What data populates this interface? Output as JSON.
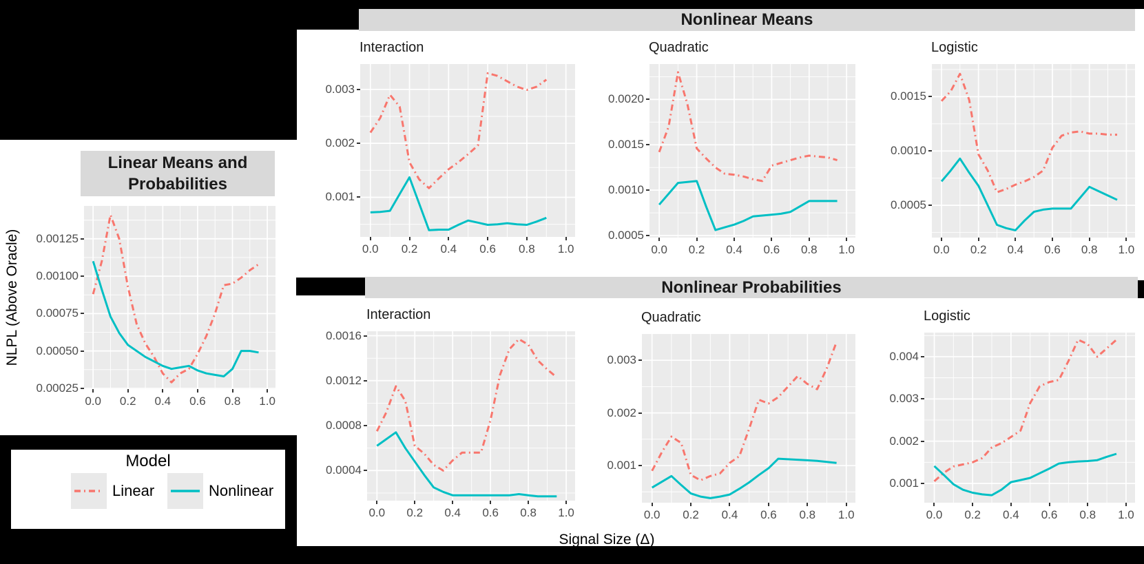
{
  "figure": {
    "strips": {
      "top": "Nonlinear Means",
      "bottom": "Nonlinear Probabilities",
      "left": "Linear Means and Probabilities"
    },
    "y_axis_title": "NLPL (Above Oracle)",
    "x_axis_title": "Signal Size (Δ)",
    "legend": {
      "title": "Model",
      "items": [
        {
          "label": "Linear",
          "color": "#F8766D",
          "dashed": true
        },
        {
          "label": "Nonlinear",
          "color": "#00BFC4",
          "dashed": false
        }
      ]
    },
    "colors": {
      "linear": "#F8766D",
      "nonlinear": "#00BFC4",
      "panel_bg": "#EBEBEB",
      "strip_bg": "#D9D9D9",
      "grid": "#FFFFFF",
      "tick_label": "#4D4D4D"
    }
  },
  "chart_data": [
    {
      "id": "linear-means-probabilities",
      "type": "line",
      "title": "",
      "facet": "Linear Means and Probabilities",
      "xlabel": "Signal Size (Δ)",
      "ylabel": "NLPL (Above Oracle)",
      "x": [
        0,
        0.05,
        0.1,
        0.15,
        0.2,
        0.25,
        0.3,
        0.35,
        0.4,
        0.45,
        0.5,
        0.55,
        0.6,
        0.65,
        0.7,
        0.75,
        0.8,
        0.85,
        0.9,
        0.95
      ],
      "series": [
        {
          "name": "Linear",
          "values": [
            0.00088,
            0.0011,
            0.00141,
            0.00125,
            0.00093,
            0.00068,
            0.00055,
            0.00046,
            0.00035,
            0.00029,
            0.00035,
            0.00038,
            0.00048,
            0.0006,
            0.00075,
            0.00094,
            0.00095,
            0.00099,
            0.00104,
            0.00108
          ]
        },
        {
          "name": "Nonlinear",
          "values": [
            0.0011,
            0.00091,
            0.00073,
            0.00062,
            0.00054,
            0.0005,
            0.00046,
            0.00043,
            0.0004,
            0.00038,
            0.00039,
            0.0004,
            0.00037,
            0.00035,
            0.00034,
            0.00033,
            0.00038,
            0.0005,
            0.0005,
            0.00049
          ]
        }
      ],
      "x_tick_values": [
        0,
        0.2,
        0.4,
        0.6,
        0.8,
        1.0
      ],
      "x_tick_labels": [
        "0.0",
        "0.2",
        "0.4",
        "0.6",
        "0.8",
        "1.0"
      ],
      "y_tick_values": [
        0.00025,
        0.0005,
        0.00075,
        0.001,
        0.00125
      ],
      "y_tick_labels": [
        "0.00025",
        "0.00050",
        "0.00075",
        "0.00100",
        "0.00125"
      ],
      "ylim": [
        0.000245,
        0.00147
      ],
      "xlim": [
        -0.052,
        1.047
      ]
    },
    {
      "id": "interaction-means",
      "type": "line",
      "title": "Interaction",
      "facet": "Nonlinear Means",
      "x": [
        0,
        0.05,
        0.1,
        0.15,
        0.2,
        0.25,
        0.3,
        0.35,
        0.4,
        0.45,
        0.5,
        0.55,
        0.6,
        0.65,
        0.7,
        0.75,
        0.8,
        0.85,
        0.9
      ],
      "series": [
        {
          "name": "Linear",
          "values": [
            0.0022,
            0.00247,
            0.0029,
            0.00268,
            0.00165,
            0.00133,
            0.00117,
            0.00135,
            0.00152,
            0.00165,
            0.0018,
            0.00196,
            0.0033,
            0.00325,
            0.00315,
            0.00305,
            0.00299,
            0.00305,
            0.00318
          ]
        },
        {
          "name": "Nonlinear",
          "values": [
            0.00072,
            0.00073,
            0.00075,
            0.00106,
            0.00137,
            0.00088,
            0.00039,
            0.0004,
            0.0004,
            0.00049,
            0.00057,
            0.00053,
            0.00049,
            0.0005,
            0.00052,
            0.0005,
            0.00049,
            0.00055,
            0.00062
          ]
        }
      ],
      "x_tick_values": [
        0,
        0.2,
        0.4,
        0.6,
        0.8,
        1.0
      ],
      "x_tick_labels": [
        "0.0",
        "0.2",
        "0.4",
        "0.6",
        "0.8",
        "1.0"
      ],
      "y_tick_values": [
        0.001,
        0.002,
        0.003
      ],
      "y_tick_labels": [
        "0.001",
        "0.002",
        "0.003"
      ],
      "ylim": [
        0.000266,
        0.00347
      ],
      "xlim": [
        -0.052,
        1.047
      ]
    },
    {
      "id": "quadratic-means",
      "type": "line",
      "title": "Quadratic",
      "facet": "Nonlinear Means",
      "x": [
        0,
        0.05,
        0.1,
        0.15,
        0.2,
        0.25,
        0.3,
        0.35,
        0.4,
        0.45,
        0.5,
        0.55,
        0.6,
        0.65,
        0.7,
        0.75,
        0.8,
        0.85,
        0.9,
        0.95
      ],
      "series": [
        {
          "name": "Linear",
          "values": [
            0.00142,
            0.0017,
            0.0023,
            0.00195,
            0.00146,
            0.00135,
            0.00125,
            0.00118,
            0.00117,
            0.00115,
            0.00112,
            0.0011,
            0.00127,
            0.0013,
            0.00133,
            0.00136,
            0.00138,
            0.00137,
            0.00136,
            0.00133
          ]
        },
        {
          "name": "Nonlinear",
          "values": [
            0.00084,
            0.00096,
            0.00108,
            0.00109,
            0.0011,
            0.00082,
            0.00056,
            0.00059,
            0.00062,
            0.00066,
            0.00071,
            0.00072,
            0.00073,
            0.00074,
            0.00076,
            0.00082,
            0.00088,
            0.00088,
            0.00088,
            0.00088
          ]
        }
      ],
      "x_tick_values": [
        0,
        0.2,
        0.4,
        0.6,
        0.8,
        1.0
      ],
      "x_tick_labels": [
        "0.0",
        "0.2",
        "0.4",
        "0.6",
        "0.8",
        "1.0"
      ],
      "y_tick_values": [
        0.0005,
        0.001,
        0.0015,
        0.002
      ],
      "y_tick_labels": [
        "0.0005",
        "0.0010",
        "0.0015",
        "0.0020"
      ],
      "ylim": [
        0.000477,
        0.00239
      ],
      "xlim": [
        -0.052,
        1.047
      ]
    },
    {
      "id": "logistic-means",
      "type": "line",
      "title": "Logistic",
      "facet": "Nonlinear Means",
      "x": [
        0,
        0.05,
        0.1,
        0.15,
        0.2,
        0.25,
        0.3,
        0.35,
        0.4,
        0.45,
        0.5,
        0.55,
        0.6,
        0.65,
        0.7,
        0.75,
        0.8,
        0.85,
        0.9,
        0.95
      ],
      "series": [
        {
          "name": "Linear",
          "values": [
            0.00146,
            0.00155,
            0.00171,
            0.00147,
            0.00097,
            0.00082,
            0.00062,
            0.00065,
            0.00069,
            0.00072,
            0.00076,
            0.00082,
            0.00103,
            0.00114,
            0.00117,
            0.00118,
            0.00116,
            0.00116,
            0.00115,
            0.00115
          ]
        },
        {
          "name": "Nonlinear",
          "values": [
            0.00072,
            0.00082,
            0.00093,
            0.0008,
            0.00068,
            0.0005,
            0.00032,
            0.00029,
            0.00027,
            0.00036,
            0.00044,
            0.00046,
            0.00047,
            0.00047,
            0.00047,
            0.00057,
            0.00067,
            0.00063,
            0.00059,
            0.00055
          ]
        }
      ],
      "x_tick_values": [
        0,
        0.2,
        0.4,
        0.6,
        0.8,
        1.0
      ],
      "x_tick_labels": [
        "0.0",
        "0.2",
        "0.4",
        "0.6",
        "0.8",
        "1.0"
      ],
      "y_tick_values": [
        0.0005,
        0.001,
        0.0015
      ],
      "y_tick_labels": [
        "0.0005",
        "0.0010",
        "0.0015"
      ],
      "ylim": [
        0.000203,
        0.0018
      ],
      "xlim": [
        -0.052,
        1.047
      ]
    },
    {
      "id": "interaction-probabilities",
      "type": "line",
      "title": "Interaction",
      "facet": "Nonlinear Probabilities",
      "x": [
        0,
        0.05,
        0.1,
        0.15,
        0.2,
        0.25,
        0.3,
        0.35,
        0.4,
        0.45,
        0.5,
        0.55,
        0.6,
        0.65,
        0.7,
        0.75,
        0.8,
        0.85,
        0.9,
        0.95
      ],
      "series": [
        {
          "name": "Linear",
          "values": [
            0.00075,
            0.00092,
            0.00115,
            0.00102,
            0.00062,
            0.00055,
            0.00045,
            0.0004,
            0.00049,
            0.00056,
            0.00056,
            0.00056,
            0.00085,
            0.00125,
            0.00148,
            0.00157,
            0.00152,
            0.00138,
            0.0013,
            0.00123
          ]
        },
        {
          "name": "Nonlinear",
          "values": [
            0.00062,
            0.00068,
            0.00074,
            0.0006,
            0.00048,
            0.00036,
            0.00025,
            0.00021,
            0.00018,
            0.00018,
            0.00018,
            0.00018,
            0.00018,
            0.00018,
            0.00018,
            0.00019,
            0.00018,
            0.00017,
            0.00017,
            0.00017
          ]
        }
      ],
      "x_tick_values": [
        0,
        0.2,
        0.4,
        0.6,
        0.8,
        1.0
      ],
      "x_tick_labels": [
        "0.0",
        "0.2",
        "0.4",
        "0.6",
        "0.8",
        "1.0"
      ],
      "y_tick_values": [
        0.0004,
        0.0008,
        0.0012,
        0.0016
      ],
      "y_tick_labels": [
        "0.0004",
        "0.0008",
        "0.0012",
        "0.0016"
      ],
      "ylim": [
        0.000132,
        0.00164
      ],
      "xlim": [
        -0.052,
        1.047
      ]
    },
    {
      "id": "quadratic-probabilities",
      "type": "line",
      "title": "Quadratic",
      "facet": "Nonlinear Probabilities",
      "x": [
        0,
        0.05,
        0.1,
        0.15,
        0.2,
        0.25,
        0.3,
        0.35,
        0.4,
        0.45,
        0.5,
        0.55,
        0.6,
        0.65,
        0.7,
        0.75,
        0.8,
        0.85,
        0.9,
        0.95
      ],
      "series": [
        {
          "name": "Linear",
          "values": [
            0.0009,
            0.00125,
            0.00155,
            0.00143,
            0.00082,
            0.00072,
            0.0008,
            0.00085,
            0.00105,
            0.00118,
            0.0017,
            0.00225,
            0.00218,
            0.0023,
            0.0025,
            0.0027,
            0.00255,
            0.00245,
            0.00285,
            0.00335
          ]
        },
        {
          "name": "Nonlinear",
          "values": [
            0.00058,
            0.00069,
            0.0008,
            0.00063,
            0.00047,
            0.00041,
            0.00038,
            0.00041,
            0.00045,
            0.00056,
            0.00068,
            0.00082,
            0.00095,
            0.00113,
            0.00112,
            0.00111,
            0.0011,
            0.00109,
            0.00107,
            0.00105
          ]
        }
      ],
      "x_tick_values": [
        0,
        0.2,
        0.4,
        0.6,
        0.8,
        1.0
      ],
      "x_tick_labels": [
        "0.0",
        "0.2",
        "0.4",
        "0.6",
        "0.8",
        "1.0"
      ],
      "y_tick_values": [
        0.001,
        0.002,
        0.003
      ],
      "y_tick_labels": [
        "0.001",
        "0.002",
        "0.003"
      ],
      "ylim": [
        0.000294,
        0.0035
      ],
      "xlim": [
        -0.052,
        1.047
      ]
    },
    {
      "id": "logistic-probabilities",
      "type": "line",
      "title": "Logistic",
      "facet": "Nonlinear Probabilities",
      "x": [
        0,
        0.05,
        0.1,
        0.15,
        0.2,
        0.25,
        0.3,
        0.35,
        0.4,
        0.45,
        0.5,
        0.55,
        0.6,
        0.65,
        0.7,
        0.75,
        0.8,
        0.85,
        0.9,
        0.95
      ],
      "series": [
        {
          "name": "Linear",
          "values": [
            0.00105,
            0.00125,
            0.0014,
            0.00145,
            0.0015,
            0.0016,
            0.00185,
            0.00195,
            0.0021,
            0.00225,
            0.0029,
            0.0033,
            0.0034,
            0.00345,
            0.0039,
            0.0044,
            0.0043,
            0.004,
            0.0042,
            0.0044
          ]
        },
        {
          "name": "Nonlinear",
          "values": [
            0.00141,
            0.0012,
            0.00098,
            0.00085,
            0.00078,
            0.00074,
            0.00072,
            0.00085,
            0.00103,
            0.00108,
            0.00113,
            0.00124,
            0.00135,
            0.00147,
            0.0015,
            0.00152,
            0.00153,
            0.00155,
            0.00163,
            0.0017
          ]
        }
      ],
      "x_tick_values": [
        0,
        0.2,
        0.4,
        0.6,
        0.8,
        1.0
      ],
      "x_tick_labels": [
        "0.0",
        "0.2",
        "0.4",
        "0.6",
        "0.8",
        "1.0"
      ],
      "y_tick_values": [
        0.001,
        0.002,
        0.003,
        0.004
      ],
      "y_tick_labels": [
        "0.001",
        "0.002",
        "0.003",
        "0.004"
      ],
      "ylim": [
        0.000543,
        0.00457
      ],
      "xlim": [
        -0.052,
        1.047
      ]
    }
  ]
}
